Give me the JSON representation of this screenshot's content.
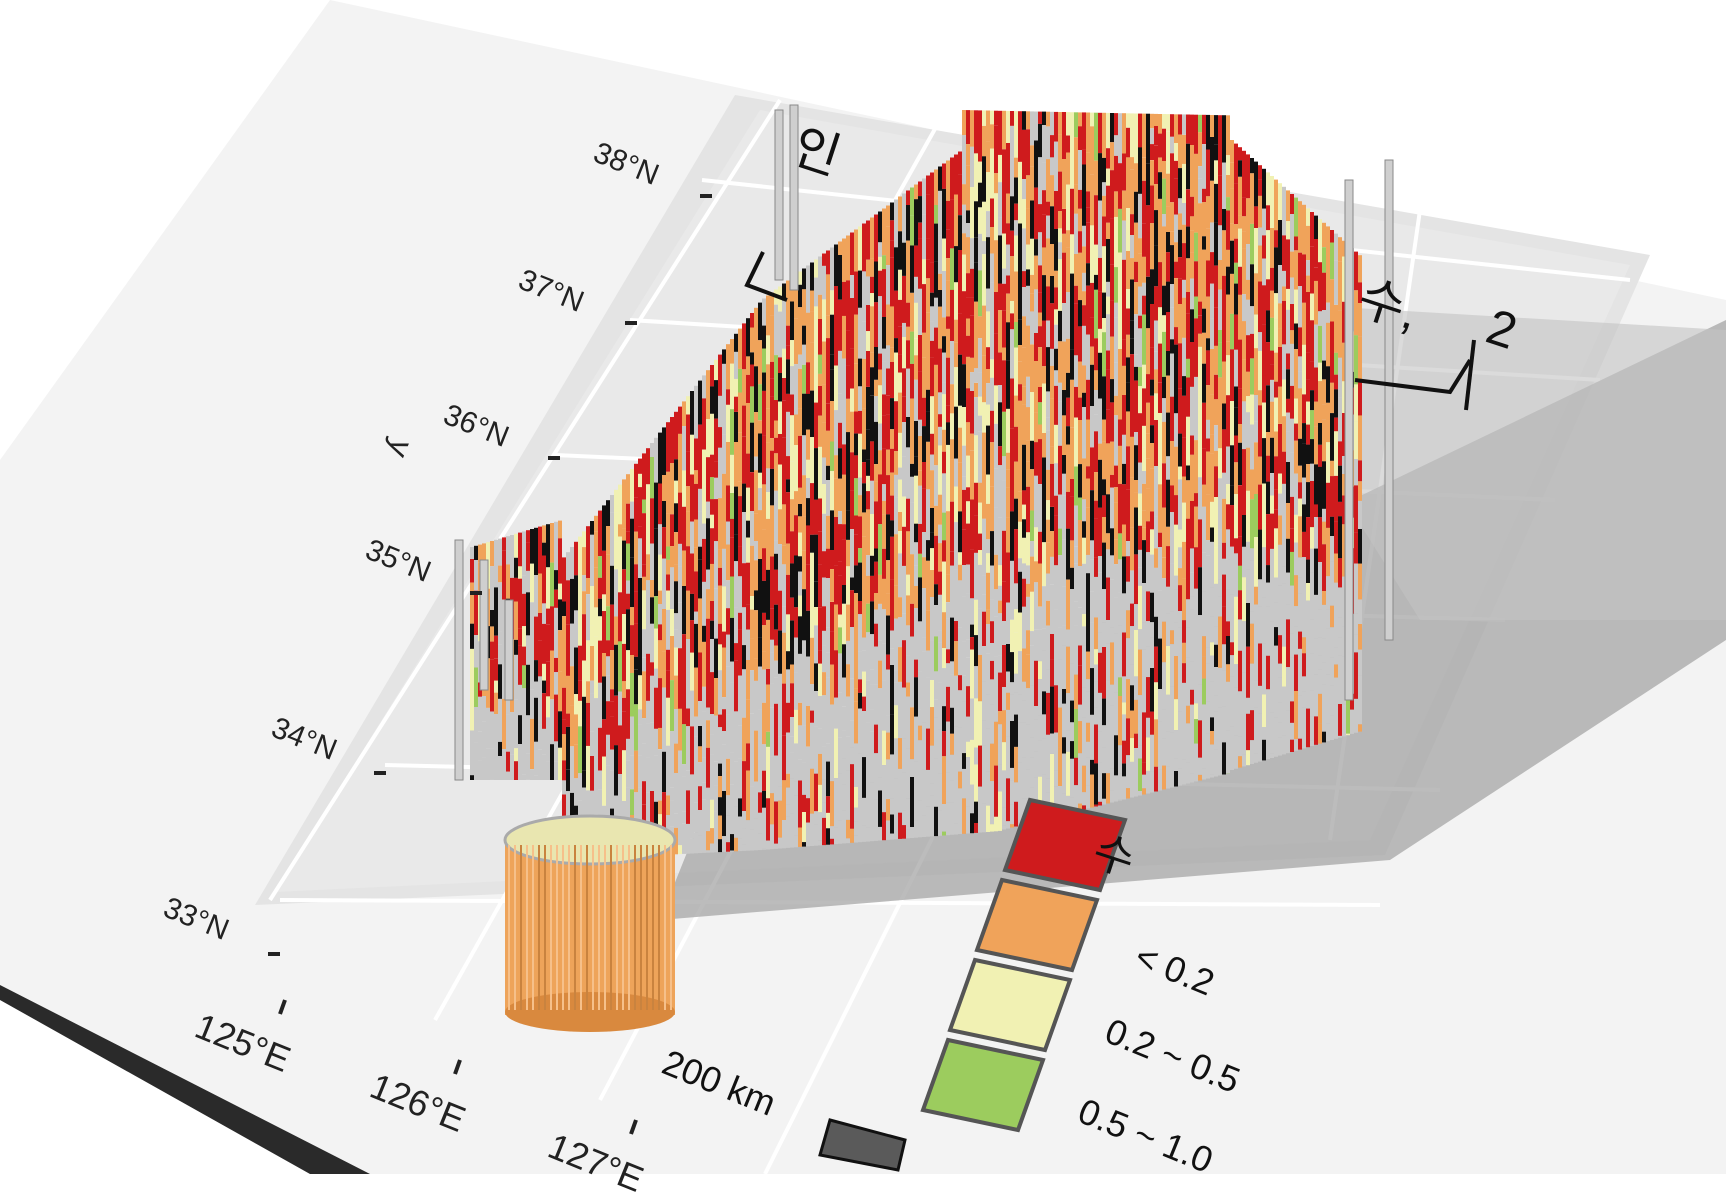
{
  "map": {
    "title_fragments": [
      "인",
      "수,",
      "2",
      "수"
    ],
    "y_axis_letter": "y",
    "lat_ticks": [
      "38°N",
      "37°N",
      "36°N",
      "35°N",
      "34°N",
      "33°N"
    ],
    "lon_ticks": [
      "125°E",
      "126°E",
      "127°E"
    ],
    "scale_bar_label": "200 km"
  },
  "legend": {
    "items": [
      {
        "label": "< 0.2",
        "color": "#cf1b1d"
      },
      {
        "label": "0.2 ~ 0.5",
        "color": "#f0a35a"
      },
      {
        "label": "0.5 ~ 1.0",
        "color": "#f1f1b3"
      },
      {
        "label": "",
        "color": "#9ccc5e"
      }
    ]
  },
  "colors": {
    "panel": "#ececec",
    "floor": "#f3f3f3",
    "shadow": "#9a9a9a",
    "no_data": "#111111",
    "wall": "#c8c8c8"
  }
}
